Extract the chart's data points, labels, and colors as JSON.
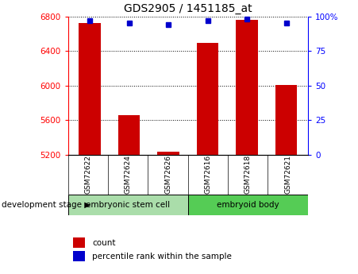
{
  "title": "GDS2905 / 1451185_at",
  "samples": [
    "GSM72622",
    "GSM72624",
    "GSM72626",
    "GSM72616",
    "GSM72618",
    "GSM72621"
  ],
  "count_values": [
    6720,
    5660,
    5240,
    6490,
    6760,
    6010
  ],
  "percentile_values": [
    97,
    95,
    94,
    97,
    98,
    95
  ],
  "ylim_left": [
    5200,
    6800
  ],
  "ylim_right": [
    0,
    100
  ],
  "yticks_left": [
    5200,
    5600,
    6000,
    6400,
    6800
  ],
  "yticks_right": [
    0,
    25,
    50,
    75,
    100
  ],
  "bar_color": "#cc0000",
  "dot_color": "#0000cc",
  "group1_label": "embryonic stem cell",
  "group2_label": "embryoid body",
  "group1_color": "#aaddaa",
  "group2_color": "#55cc55",
  "stage_label": "development stage",
  "legend_count": "count",
  "legend_percentile": "percentile rank within the sample",
  "bg_color": "#ffffff",
  "tick_area_color": "#c8c8c8"
}
